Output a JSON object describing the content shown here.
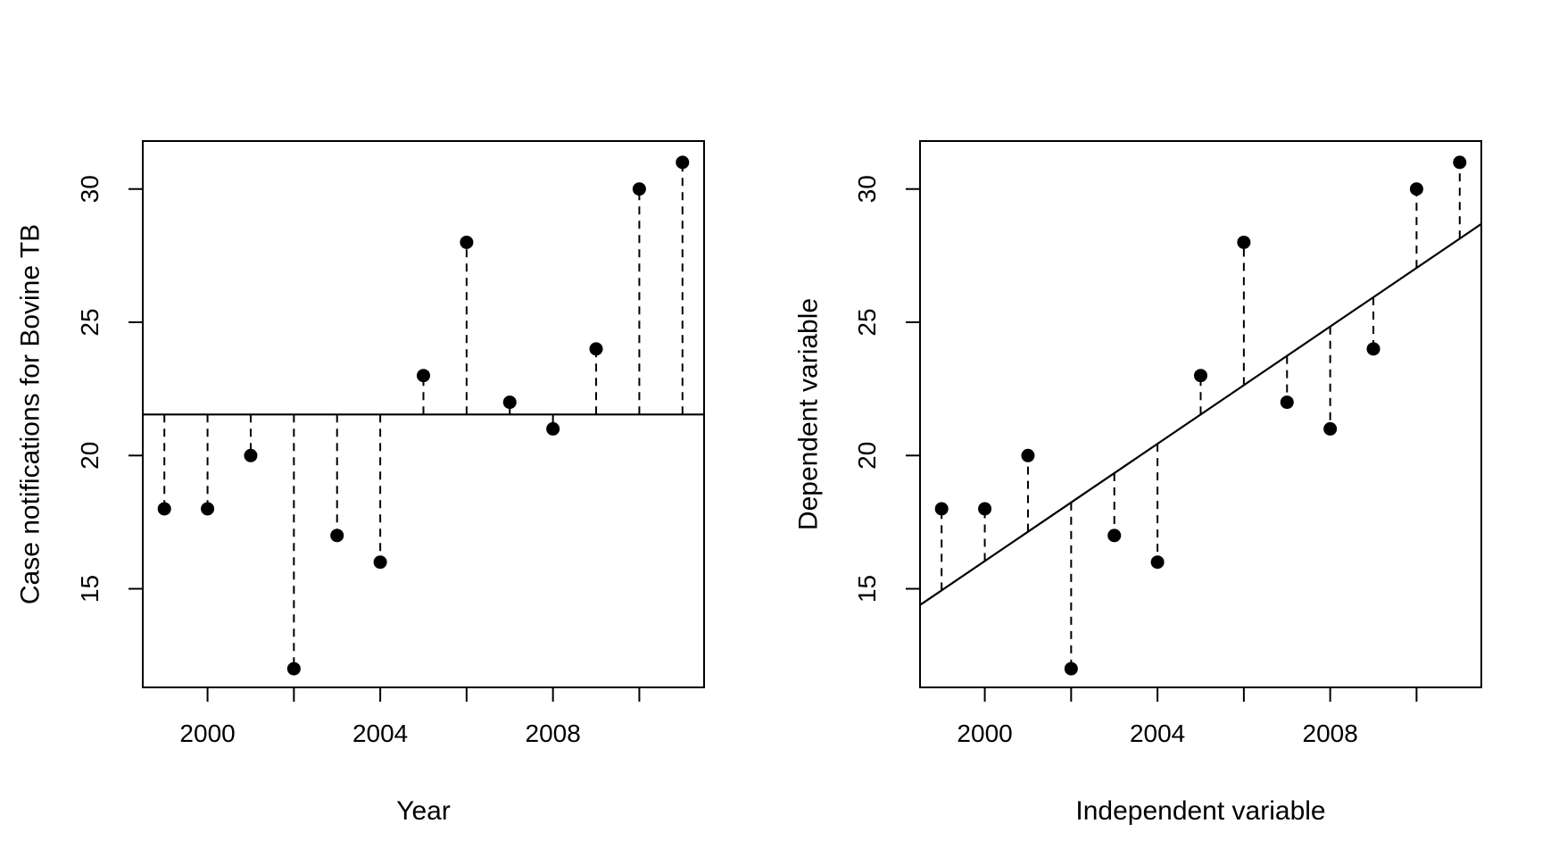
{
  "chart_data": [
    {
      "type": "scatter",
      "title": "",
      "xlabel": "Year",
      "ylabel": "Case notifications for Bovine TB",
      "xlim": [
        1998.5,
        2011.5
      ],
      "ylim": [
        11.3,
        31.8
      ],
      "xticks": [
        2000,
        2002,
        2004,
        2006,
        2008,
        2010
      ],
      "xtick_labels": [
        "2000",
        "",
        "2004",
        "",
        "2008",
        ""
      ],
      "yticks": [
        15,
        20,
        25,
        30
      ],
      "ytick_labels": [
        "15",
        "20",
        "25",
        "30"
      ],
      "x": [
        1999,
        2000,
        2001,
        2002,
        2003,
        2004,
        2005,
        2006,
        2007,
        2008,
        2009,
        2010,
        2011
      ],
      "y": [
        18,
        18,
        20,
        12,
        17,
        16,
        23,
        28,
        22,
        21,
        24,
        30,
        31
      ],
      "reference_line": {
        "kind": "mean",
        "value": 21.54
      },
      "residuals": "dashed",
      "grid": false,
      "legend": "none"
    },
    {
      "type": "scatter",
      "title": "",
      "xlabel": "Independent variable",
      "ylabel": "Dependent variable",
      "xlim": [
        1998.5,
        2011.5
      ],
      "ylim": [
        11.3,
        31.8
      ],
      "xticks": [
        2000,
        2002,
        2004,
        2006,
        2008,
        2010
      ],
      "xtick_labels": [
        "2000",
        "",
        "2004",
        "",
        "2008",
        ""
      ],
      "yticks": [
        15,
        20,
        25,
        30
      ],
      "ytick_labels": [
        "15",
        "20",
        "25",
        "30"
      ],
      "x": [
        1999,
        2000,
        2001,
        2002,
        2003,
        2004,
        2005,
        2006,
        2007,
        2008,
        2009,
        2010,
        2011
      ],
      "y": [
        18,
        18,
        20,
        12,
        17,
        16,
        23,
        28,
        22,
        21,
        24,
        30,
        31
      ],
      "reference_line": {
        "kind": "regression",
        "intercept_at_2005": 21.54,
        "slope": 1.1
      },
      "residuals": "dashed",
      "grid": false,
      "legend": "none"
    }
  ]
}
